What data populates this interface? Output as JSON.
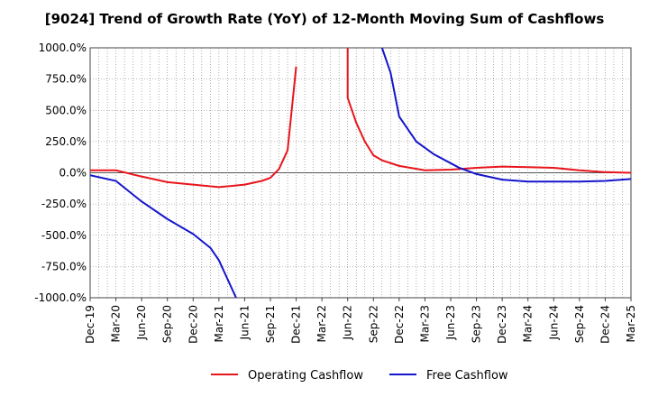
{
  "chart_data": {
    "type": "line",
    "title": "[9024]  Trend of Growth Rate (YoY) of 12-Month Moving Sum of Cashflows",
    "xlabel": "",
    "ylabel": "",
    "ylim": [
      -1000,
      1000
    ],
    "grid": true,
    "legend_position": "bottom",
    "y_ticks": [
      1000,
      750,
      500,
      250,
      0,
      -250,
      -500,
      -750,
      -1000
    ],
    "y_tick_labels": [
      "1000.0%",
      "750.0%",
      "500.0%",
      "250.0%",
      "0.0%",
      "-250.0%",
      "-500.0%",
      "-750.0%",
      "-1000.0%"
    ],
    "x_tick_labels": [
      "Dec-19",
      "Mar-20",
      "Jun-20",
      "Sep-20",
      "Dec-20",
      "Mar-21",
      "Jun-21",
      "Sep-21",
      "Dec-21",
      "Mar-22",
      "Jun-22",
      "Sep-22",
      "Dec-22",
      "Mar-23",
      "Jun-23",
      "Sep-23",
      "Dec-23",
      "Mar-24",
      "Jun-24",
      "Sep-24",
      "Dec-24",
      "Mar-25"
    ],
    "series": [
      {
        "name": "Operating Cashflow",
        "color": "#e8151b",
        "points": [
          [
            0,
            20
          ],
          [
            3,
            20
          ],
          [
            6,
            -30
          ],
          [
            9,
            -75
          ],
          [
            12,
            -95
          ],
          [
            15,
            -115
          ],
          [
            18,
            -95
          ],
          [
            20,
            -65
          ],
          [
            21,
            -40
          ],
          [
            22,
            30
          ],
          [
            23,
            180
          ],
          [
            24,
            850
          ],
          null,
          [
            30,
            1000
          ],
          [
            30,
            600
          ],
          [
            31,
            400
          ],
          [
            32,
            250
          ],
          [
            33,
            140
          ],
          [
            34,
            100
          ],
          [
            36,
            55
          ],
          [
            39,
            20
          ],
          [
            42,
            25
          ],
          [
            45,
            40
          ],
          [
            48,
            50
          ],
          [
            51,
            45
          ],
          [
            54,
            40
          ],
          [
            57,
            20
          ],
          [
            60,
            5
          ],
          [
            63,
            0
          ]
        ]
      },
      {
        "name": "Free Cashflow",
        "color": "#1515cc",
        "points": [
          [
            0,
            -20
          ],
          [
            3,
            -65
          ],
          [
            6,
            -230
          ],
          [
            9,
            -370
          ],
          [
            12,
            -490
          ],
          [
            14,
            -600
          ],
          [
            15,
            -700
          ],
          [
            16,
            -850
          ],
          [
            17,
            -1000
          ],
          null,
          [
            34,
            1000
          ],
          [
            35,
            800
          ],
          [
            36,
            450
          ],
          [
            38,
            250
          ],
          [
            40,
            150
          ],
          [
            43,
            40
          ],
          [
            45,
            -10
          ],
          [
            48,
            -55
          ],
          [
            51,
            -70
          ],
          [
            54,
            -70
          ],
          [
            57,
            -70
          ],
          [
            60,
            -65
          ],
          [
            63,
            -50
          ],
          [
            66,
            -35
          ]
        ]
      }
    ]
  }
}
